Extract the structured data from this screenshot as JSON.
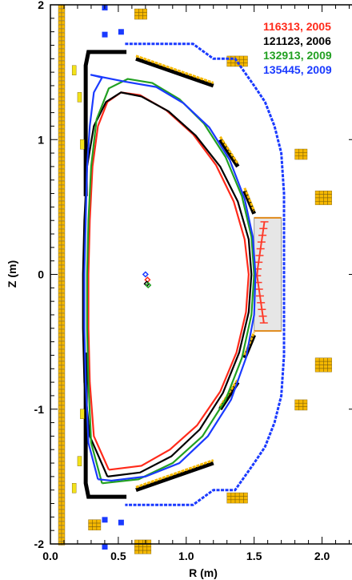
{
  "chart_data": {
    "type": "line",
    "title": "",
    "xlabel": "R (m)",
    "ylabel": "Z (m)",
    "xlim": [
      0.0,
      2.25
    ],
    "ylim": [
      -2.0,
      2.0
    ],
    "xticks": [
      {
        "value": 0.0,
        "label": "0.0"
      },
      {
        "value": 0.5,
        "label": "0.5"
      },
      {
        "value": 1.0,
        "label": "1.0"
      },
      {
        "value": 1.5,
        "label": "1.5"
      },
      {
        "value": 2.0,
        "label": "2.0"
      }
    ],
    "yticks": [
      {
        "value": 2,
        "label": "2"
      },
      {
        "value": 1,
        "label": "1"
      },
      {
        "value": 0,
        "label": "0"
      },
      {
        "value": -1,
        "label": "-1"
      },
      {
        "value": -2,
        "label": "-2"
      }
    ],
    "grid": false,
    "legend_position": "top-right",
    "series": [
      {
        "name": "116313, 2005",
        "color": "#ff2a1a",
        "axis": [
          0.715,
          -0.04
        ],
        "points": [
          [
            0.43,
            -1.45
          ],
          [
            0.32,
            -1.2
          ],
          [
            0.29,
            -0.8
          ],
          [
            0.28,
            -0.4
          ],
          [
            0.28,
            0.0
          ],
          [
            0.29,
            0.4
          ],
          [
            0.31,
            0.8
          ],
          [
            0.35,
            1.1
          ],
          [
            0.42,
            1.28
          ],
          [
            0.52,
            1.35
          ],
          [
            0.66,
            1.33
          ],
          [
            0.85,
            1.22
          ],
          [
            1.05,
            1.04
          ],
          [
            1.22,
            0.81
          ],
          [
            1.35,
            0.54
          ],
          [
            1.43,
            0.26
          ],
          [
            1.46,
            0.0
          ],
          [
            1.44,
            -0.28
          ],
          [
            1.37,
            -0.58
          ],
          [
            1.25,
            -0.87
          ],
          [
            1.08,
            -1.12
          ],
          [
            0.88,
            -1.3
          ],
          [
            0.67,
            -1.42
          ],
          [
            0.43,
            -1.45
          ]
        ]
      },
      {
        "name": "121123, 2006",
        "color": "#000000",
        "axis": [
          0.71,
          -0.07
        ],
        "points": [
          [
            0.42,
            -1.5
          ],
          [
            0.29,
            -1.2
          ],
          [
            0.25,
            -0.8
          ],
          [
            0.24,
            -0.4
          ],
          [
            0.24,
            0.0
          ],
          [
            0.25,
            0.4
          ],
          [
            0.27,
            0.8
          ],
          [
            0.32,
            1.1
          ],
          [
            0.41,
            1.28
          ],
          [
            0.52,
            1.35
          ],
          [
            0.67,
            1.32
          ],
          [
            0.87,
            1.21
          ],
          [
            1.07,
            1.03
          ],
          [
            1.25,
            0.8
          ],
          [
            1.38,
            0.54
          ],
          [
            1.46,
            0.26
          ],
          [
            1.48,
            0.0
          ],
          [
            1.46,
            -0.28
          ],
          [
            1.39,
            -0.58
          ],
          [
            1.27,
            -0.88
          ],
          [
            1.1,
            -1.15
          ],
          [
            0.89,
            -1.35
          ],
          [
            0.66,
            -1.47
          ],
          [
            0.42,
            -1.5
          ]
        ]
      },
      {
        "name": "132913, 2009",
        "color": "#22a022",
        "axis": [
          0.72,
          -0.08
        ],
        "points": [
          [
            0.38,
            -1.55
          ],
          [
            0.3,
            -1.25
          ],
          [
            0.28,
            -0.8
          ],
          [
            0.27,
            -0.4
          ],
          [
            0.27,
            0.0
          ],
          [
            0.28,
            0.4
          ],
          [
            0.3,
            0.8
          ],
          [
            0.34,
            1.15
          ],
          [
            0.43,
            1.38
          ],
          [
            0.57,
            1.45
          ],
          [
            0.75,
            1.42
          ],
          [
            0.95,
            1.3
          ],
          [
            1.13,
            1.12
          ],
          [
            1.29,
            0.87
          ],
          [
            1.41,
            0.58
          ],
          [
            1.48,
            0.28
          ],
          [
            1.5,
            0.0
          ],
          [
            1.48,
            -0.3
          ],
          [
            1.41,
            -0.62
          ],
          [
            1.29,
            -0.93
          ],
          [
            1.12,
            -1.2
          ],
          [
            0.9,
            -1.4
          ],
          [
            0.65,
            -1.52
          ],
          [
            0.38,
            -1.55
          ]
        ]
      },
      {
        "name": "135445, 2009",
        "color": "#1a3aff",
        "axis": [
          0.7,
          0.0
        ],
        "points": [
          [
            0.35,
            -1.52
          ],
          [
            0.28,
            -1.25
          ],
          [
            0.26,
            -0.8
          ],
          [
            0.25,
            -0.4
          ],
          [
            0.25,
            0.0
          ],
          [
            0.26,
            0.4
          ],
          [
            0.27,
            0.8
          ],
          [
            0.29,
            1.1
          ],
          [
            0.32,
            1.35
          ],
          [
            0.38,
            1.46
          ],
          [
            0.3,
            1.48
          ],
          [
            0.55,
            1.43
          ],
          [
            0.78,
            1.39
          ],
          [
            0.98,
            1.27
          ],
          [
            1.17,
            1.09
          ],
          [
            1.32,
            0.85
          ],
          [
            1.43,
            0.56
          ],
          [
            1.49,
            0.28
          ],
          [
            1.51,
            0.0
          ],
          [
            1.5,
            -0.3
          ],
          [
            1.44,
            -0.62
          ],
          [
            1.33,
            -0.93
          ],
          [
            1.16,
            -1.2
          ],
          [
            0.95,
            -1.4
          ],
          [
            0.7,
            -1.5
          ],
          [
            0.45,
            -1.53
          ],
          [
            0.35,
            -1.52
          ]
        ]
      }
    ],
    "wall": {
      "color": "#1a3aff",
      "points": [
        [
          0.55,
          1.71
        ],
        [
          1.05,
          1.71
        ],
        [
          1.2,
          1.6
        ],
        [
          1.36,
          1.6
        ],
        [
          1.5,
          1.4
        ],
        [
          1.58,
          1.28
        ],
        [
          1.65,
          1.1
        ],
        [
          1.7,
          0.9
        ],
        [
          1.72,
          0.6
        ],
        [
          1.72,
          -0.6
        ],
        [
          1.7,
          -0.9
        ],
        [
          1.65,
          -1.1
        ],
        [
          1.58,
          -1.28
        ],
        [
          1.5,
          -1.4
        ],
        [
          1.36,
          -1.6
        ],
        [
          1.2,
          -1.6
        ],
        [
          1.05,
          -1.71
        ],
        [
          0.55,
          -1.71
        ]
      ]
    },
    "passive_plate": {
      "r": [
        1.5,
        1.7
      ],
      "z": [
        -0.42,
        0.42
      ]
    }
  }
}
